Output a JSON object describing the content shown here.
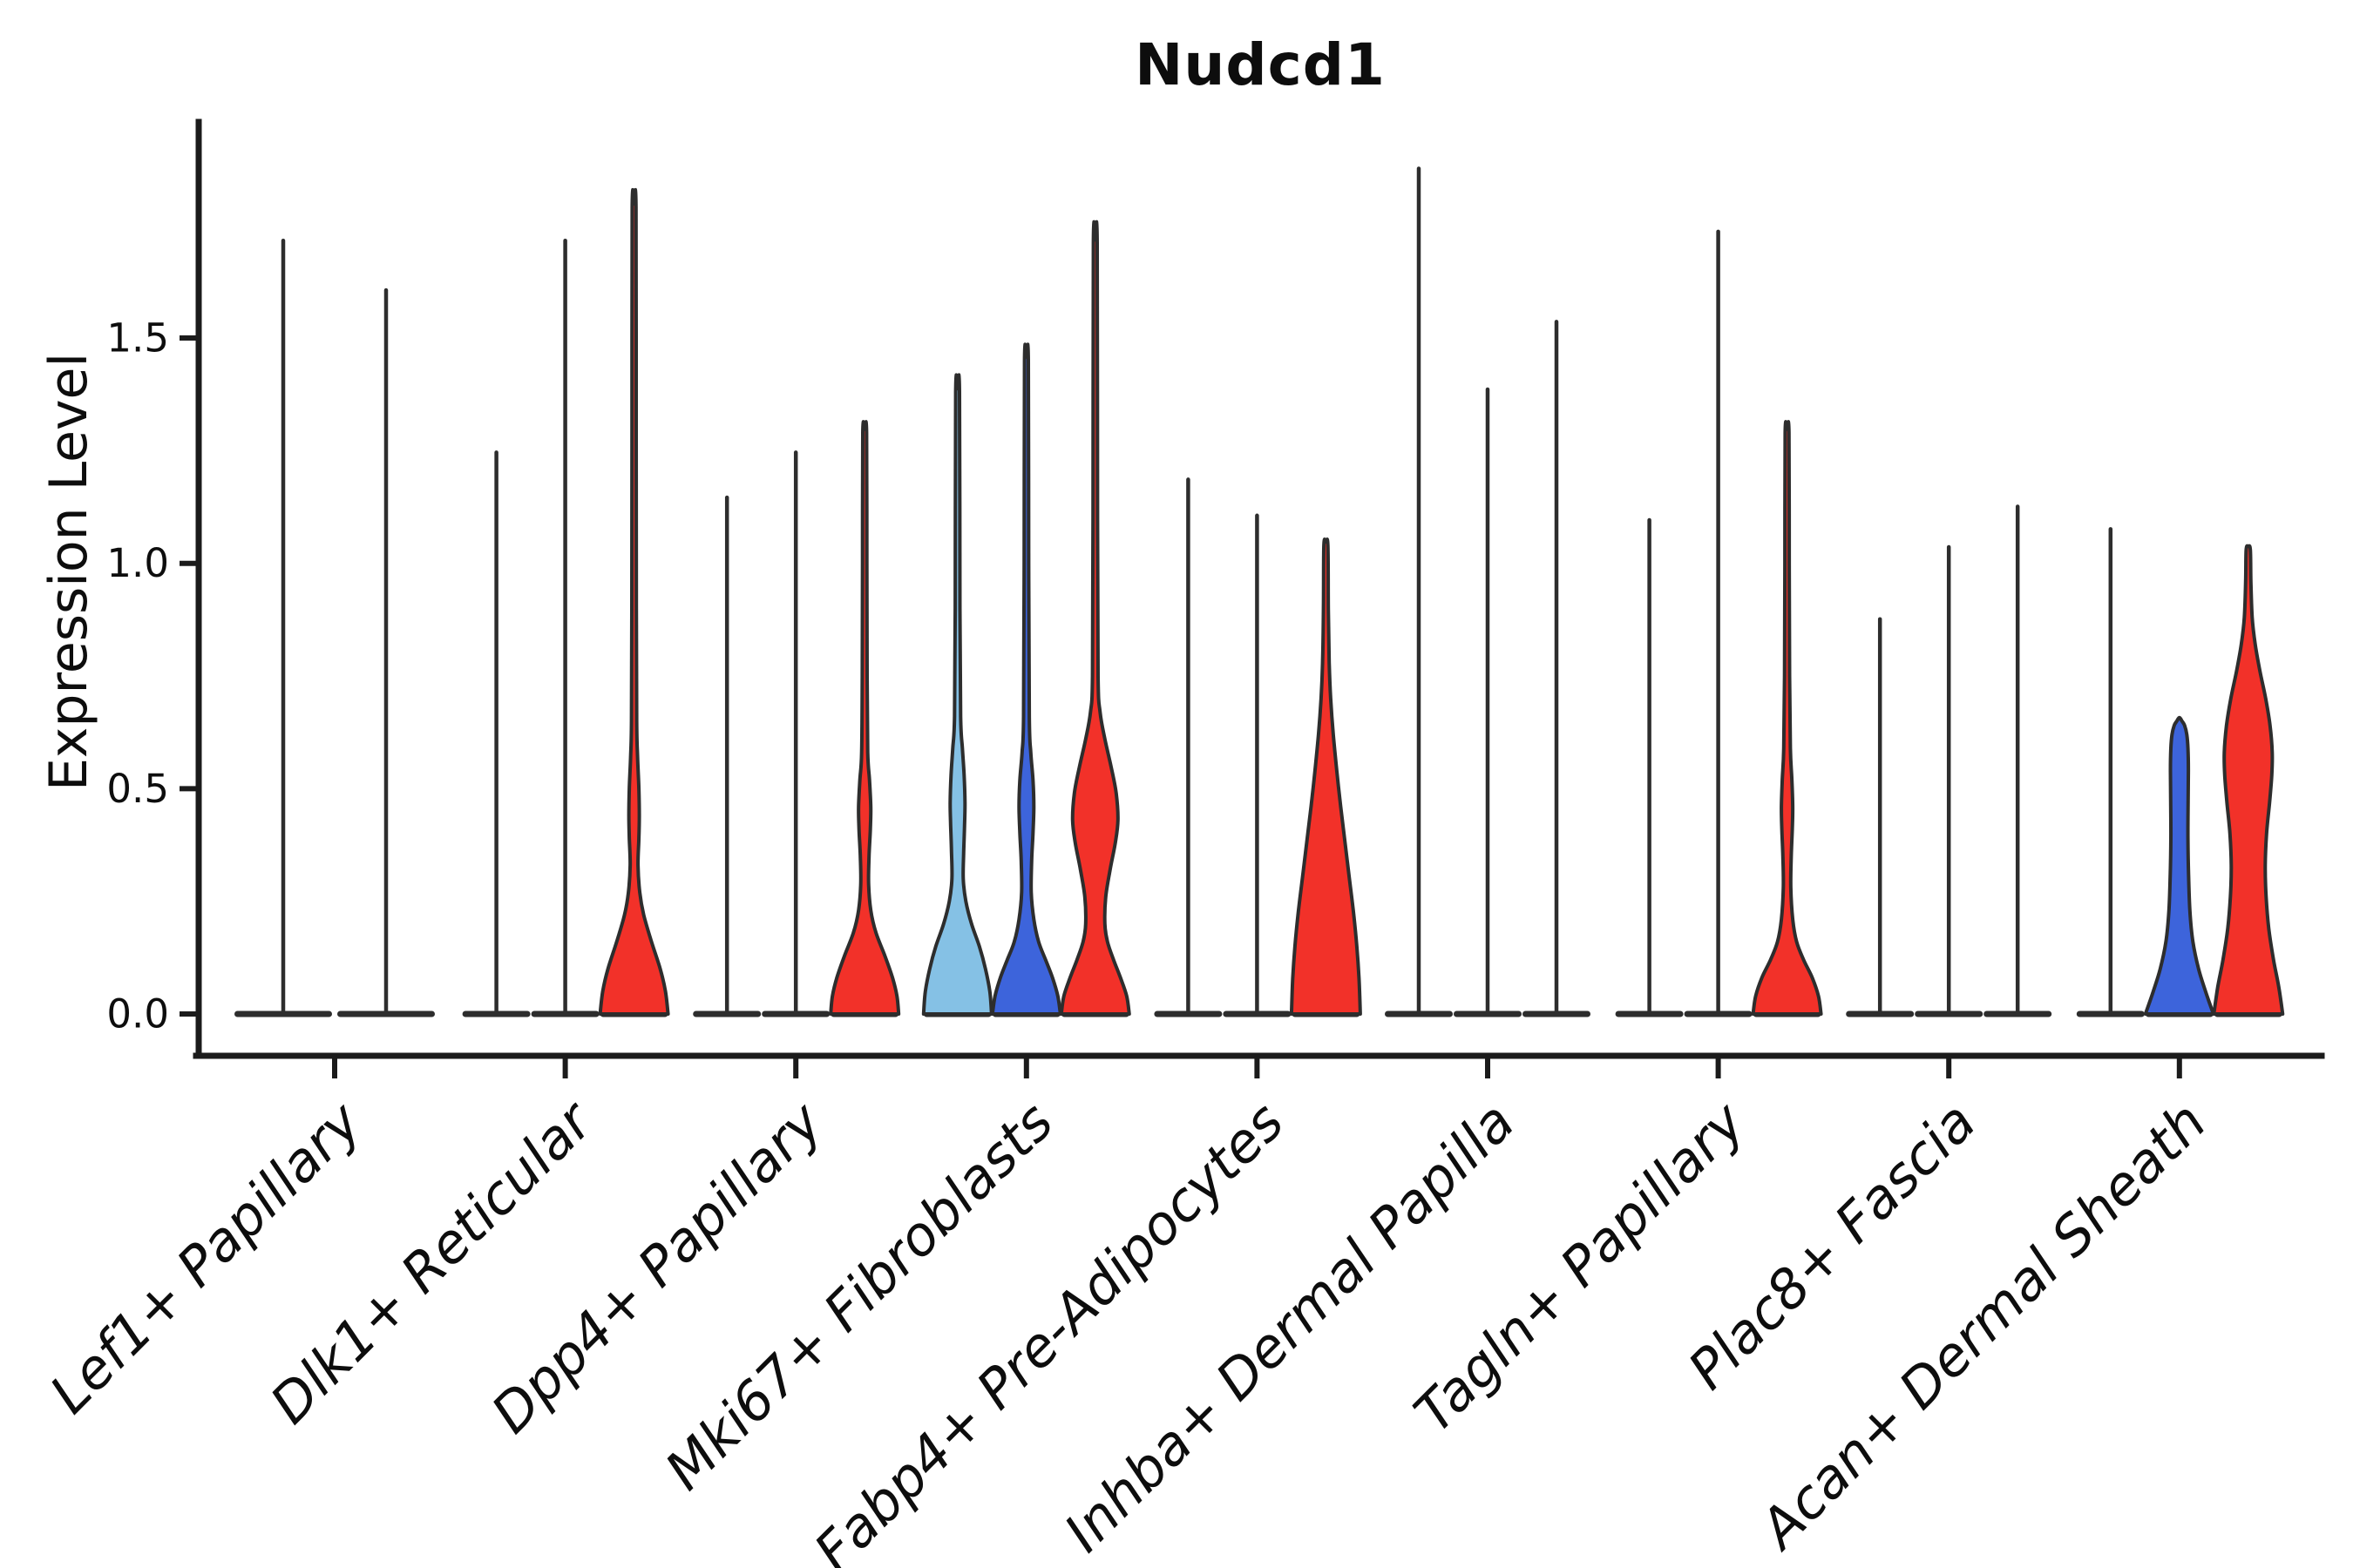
{
  "chart_data": {
    "type": "violin",
    "title": "Nudcd1",
    "ylabel": "Expression Level",
    "xlabel": "",
    "y_ticks": [
      0.0,
      0.5,
      1.0,
      1.5
    ],
    "y_tick_labels": [
      "0.0",
      "0.5",
      "1.0",
      "1.5"
    ],
    "ylim": [
      0,
      1.98
    ],
    "grid": "off",
    "legend": "none",
    "colors": {
      "red": "#F23129",
      "blue": "#3D64DB",
      "skyblue": "#85C1E5",
      "violin_line": "#2D2D2D",
      "axis": "#1B1B1B",
      "text": "#0d0d0d"
    },
    "categories": [
      "Lef1+ Papillary",
      "Dlk1+ Reticular",
      "Dpp4+ Papillary",
      "Mki67+ Fibroblasts",
      "Fabp4+ Pre-Adipocytes",
      "Inhba+ Dermal Papilla",
      "Tagln+ Papillary",
      "Plac8+ Fascia",
      "Acan+ Dermal Sheath"
    ],
    "groups": [
      {
        "label": "Lef1+ Papillary",
        "violins": [
          {
            "offset": -59,
            "halfwidth": 56,
            "top": 1.72,
            "color": null
          },
          {
            "offset": 59,
            "halfwidth": 56,
            "top": 1.61,
            "color": null
          }
        ]
      },
      {
        "label": "Dlk1+ Reticular",
        "violins": [
          {
            "offset": -79,
            "halfwidth": 39,
            "top": 1.25,
            "color": null
          },
          {
            "offset": 0,
            "halfwidth": 39,
            "top": 1.72,
            "color": null
          },
          {
            "offset": 79,
            "halfwidth": 39,
            "top": 1.79,
            "color": "red",
            "profile": [
              [
                0,
                39
              ],
              [
                0.05,
                36
              ],
              [
                0.1,
                30
              ],
              [
                0.16,
                20
              ],
              [
                0.22,
                11
              ],
              [
                0.27,
                6.5
              ],
              [
                0.33,
                4.5
              ],
              [
                0.39,
                5.5
              ],
              [
                0.44,
                6
              ],
              [
                0.5,
                5.5
              ],
              [
                0.57,
                4
              ],
              [
                0.65,
                3
              ],
              [
                0.9,
                2.6
              ],
              [
                1.3,
                2.4
              ],
              [
                1.79,
                2.2
              ]
            ]
          }
        ]
      },
      {
        "label": "Dpp4+ Papillary",
        "violins": [
          {
            "offset": -79,
            "halfwidth": 39,
            "top": 1.15,
            "color": null
          },
          {
            "offset": 0,
            "halfwidth": 39,
            "top": 1.25,
            "color": null
          },
          {
            "offset": 79,
            "halfwidth": 39,
            "top": 1.29,
            "color": "red",
            "profile": [
              [
                0,
                39
              ],
              [
                0.04,
                37
              ],
              [
                0.08,
                32
              ],
              [
                0.13,
                23
              ],
              [
                0.18,
                13
              ],
              [
                0.23,
                7
              ],
              [
                0.29,
                4.5
              ],
              [
                0.35,
                5
              ],
              [
                0.41,
                6.5
              ],
              [
                0.46,
                7
              ],
              [
                0.52,
                5.5
              ],
              [
                0.58,
                3.5
              ],
              [
                0.75,
                2.8
              ],
              [
                1.0,
                2.5
              ],
              [
                1.29,
                2.2
              ]
            ]
          }
        ]
      },
      {
        "label": "Mki67+ Fibroblasts",
        "violins": [
          {
            "offset": -79,
            "halfwidth": 39,
            "top": 1.38,
            "color": "skyblue",
            "profile": [
              [
                0,
                39
              ],
              [
                0.05,
                37
              ],
              [
                0.1,
                32
              ],
              [
                0.15,
                25
              ],
              [
                0.2,
                16
              ],
              [
                0.25,
                9.5
              ],
              [
                0.3,
                6.5
              ],
              [
                0.36,
                7
              ],
              [
                0.42,
                8
              ],
              [
                0.47,
                8.5
              ],
              [
                0.53,
                7.5
              ],
              [
                0.59,
                5.5
              ],
              [
                0.66,
                3.5
              ],
              [
                0.9,
                2.7
              ],
              [
                1.38,
                2.2
              ]
            ]
          },
          {
            "offset": 0,
            "halfwidth": 39,
            "top": 1.45,
            "color": "blue",
            "profile": [
              [
                0,
                39
              ],
              [
                0.04,
                36
              ],
              [
                0.08,
                30
              ],
              [
                0.12,
                22
              ],
              [
                0.16,
                14
              ],
              [
                0.21,
                8.5
              ],
              [
                0.27,
                5.5
              ],
              [
                0.34,
                6
              ],
              [
                0.4,
                7.5
              ],
              [
                0.46,
                8.5
              ],
              [
                0.52,
                7.5
              ],
              [
                0.58,
                5
              ],
              [
                0.66,
                3.3
              ],
              [
                1.0,
                2.6
              ],
              [
                1.45,
                2.2
              ]
            ]
          },
          {
            "offset": 79,
            "halfwidth": 39,
            "top": 1.71,
            "color": "red",
            "profile": [
              [
                0,
                39
              ],
              [
                0.04,
                36
              ],
              [
                0.08,
                29
              ],
              [
                0.12,
                21
              ],
              [
                0.16,
                14
              ],
              [
                0.2,
                11
              ],
              [
                0.26,
                12
              ],
              [
                0.32,
                17
              ],
              [
                0.38,
                23
              ],
              [
                0.43,
                26
              ],
              [
                0.49,
                24
              ],
              [
                0.55,
                18
              ],
              [
                0.61,
                11
              ],
              [
                0.67,
                5.5
              ],
              [
                0.75,
                3.2
              ],
              [
                1.1,
                2.6
              ],
              [
                1.71,
                2.2
              ]
            ]
          }
        ]
      },
      {
        "label": "Fabp4+ Pre-Adipocytes",
        "violins": [
          {
            "offset": -79,
            "halfwidth": 39,
            "top": 1.19,
            "color": null
          },
          {
            "offset": 0,
            "halfwidth": 39,
            "top": 1.11,
            "color": null
          },
          {
            "offset": 79,
            "halfwidth": 39,
            "top": 1.04,
            "color": "red",
            "profile": [
              [
                0,
                39.5
              ],
              [
                0.08,
                38
              ],
              [
                0.15,
                35.5
              ],
              [
                0.22,
                32
              ],
              [
                0.3,
                27
              ],
              [
                0.38,
                22
              ],
              [
                0.46,
                17
              ],
              [
                0.54,
                12.5
              ],
              [
                0.62,
                8.5
              ],
              [
                0.7,
                5.5
              ],
              [
                0.78,
                3.8
              ],
              [
                0.9,
                2.8
              ],
              [
                1.04,
                2.3
              ]
            ]
          }
        ]
      },
      {
        "label": "Inhba+ Dermal Papilla",
        "violins": [
          {
            "offset": -79,
            "halfwidth": 39,
            "top": 1.88,
            "color": null
          },
          {
            "offset": 0,
            "halfwidth": 39,
            "top": 1.39,
            "color": null
          },
          {
            "offset": 79,
            "halfwidth": 39,
            "top": 1.54,
            "color": null
          }
        ]
      },
      {
        "label": "Tagln+ Papillary",
        "violins": [
          {
            "offset": -79,
            "halfwidth": 39,
            "top": 1.1,
            "color": null
          },
          {
            "offset": 0,
            "halfwidth": 39,
            "top": 1.74,
            "color": null
          },
          {
            "offset": 79,
            "halfwidth": 39,
            "top": 1.29,
            "color": "red",
            "profile": [
              [
                0,
                39
              ],
              [
                0.04,
                36
              ],
              [
                0.08,
                29
              ],
              [
                0.12,
                19
              ],
              [
                0.16,
                11
              ],
              [
                0.21,
                6.5
              ],
              [
                0.28,
                4.3
              ],
              [
                0.35,
                4.8
              ],
              [
                0.41,
                6
              ],
              [
                0.46,
                6.5
              ],
              [
                0.52,
                5.5
              ],
              [
                0.59,
                3.8
              ],
              [
                0.75,
                2.9
              ],
              [
                1.0,
                2.5
              ],
              [
                1.29,
                2.2
              ]
            ]
          }
        ]
      },
      {
        "label": "Plac8+ Fascia",
        "violins": [
          {
            "offset": -79,
            "halfwidth": 39,
            "top": 0.88,
            "color": null
          },
          {
            "offset": 0,
            "halfwidth": 39,
            "top": 1.04,
            "color": null
          },
          {
            "offset": 79,
            "halfwidth": 39,
            "top": 1.13,
            "color": null
          }
        ]
      },
      {
        "label": "Acan+ Dermal Sheath",
        "violins": [
          {
            "offset": -79,
            "halfwidth": 39,
            "top": 1.08,
            "color": null
          },
          {
            "offset": 0,
            "halfwidth": 39,
            "top": 0.65,
            "color": "blue",
            "profile": [
              [
                0,
                39
              ],
              [
                0.05,
                30
              ],
              [
                0.1,
                22
              ],
              [
                0.16,
                15.5
              ],
              [
                0.23,
                12
              ],
              [
                0.31,
                10.5
              ],
              [
                0.39,
                9.8
              ],
              [
                0.47,
                10
              ],
              [
                0.54,
                10.3
              ],
              [
                0.59,
                9.8
              ],
              [
                0.62,
                8.5
              ],
              [
                0.64,
                6
              ],
              [
                0.65,
                3
              ]
            ]
          },
          {
            "offset": 79,
            "halfwidth": 39,
            "top": 1.03,
            "color": "red",
            "profile": [
              [
                0,
                39.5
              ],
              [
                0.06,
                35
              ],
              [
                0.12,
                29
              ],
              [
                0.19,
                23.5
              ],
              [
                0.26,
                20.5
              ],
              [
                0.33,
                19.5
              ],
              [
                0.4,
                21
              ],
              [
                0.47,
                24.5
              ],
              [
                0.53,
                27
              ],
              [
                0.58,
                27.5
              ],
              [
                0.64,
                25
              ],
              [
                0.7,
                20
              ],
              [
                0.76,
                13.5
              ],
              [
                0.82,
                8
              ],
              [
                0.88,
                4.5
              ],
              [
                0.96,
                3
              ],
              [
                1.03,
                2.4
              ]
            ]
          }
        ]
      }
    ]
  }
}
